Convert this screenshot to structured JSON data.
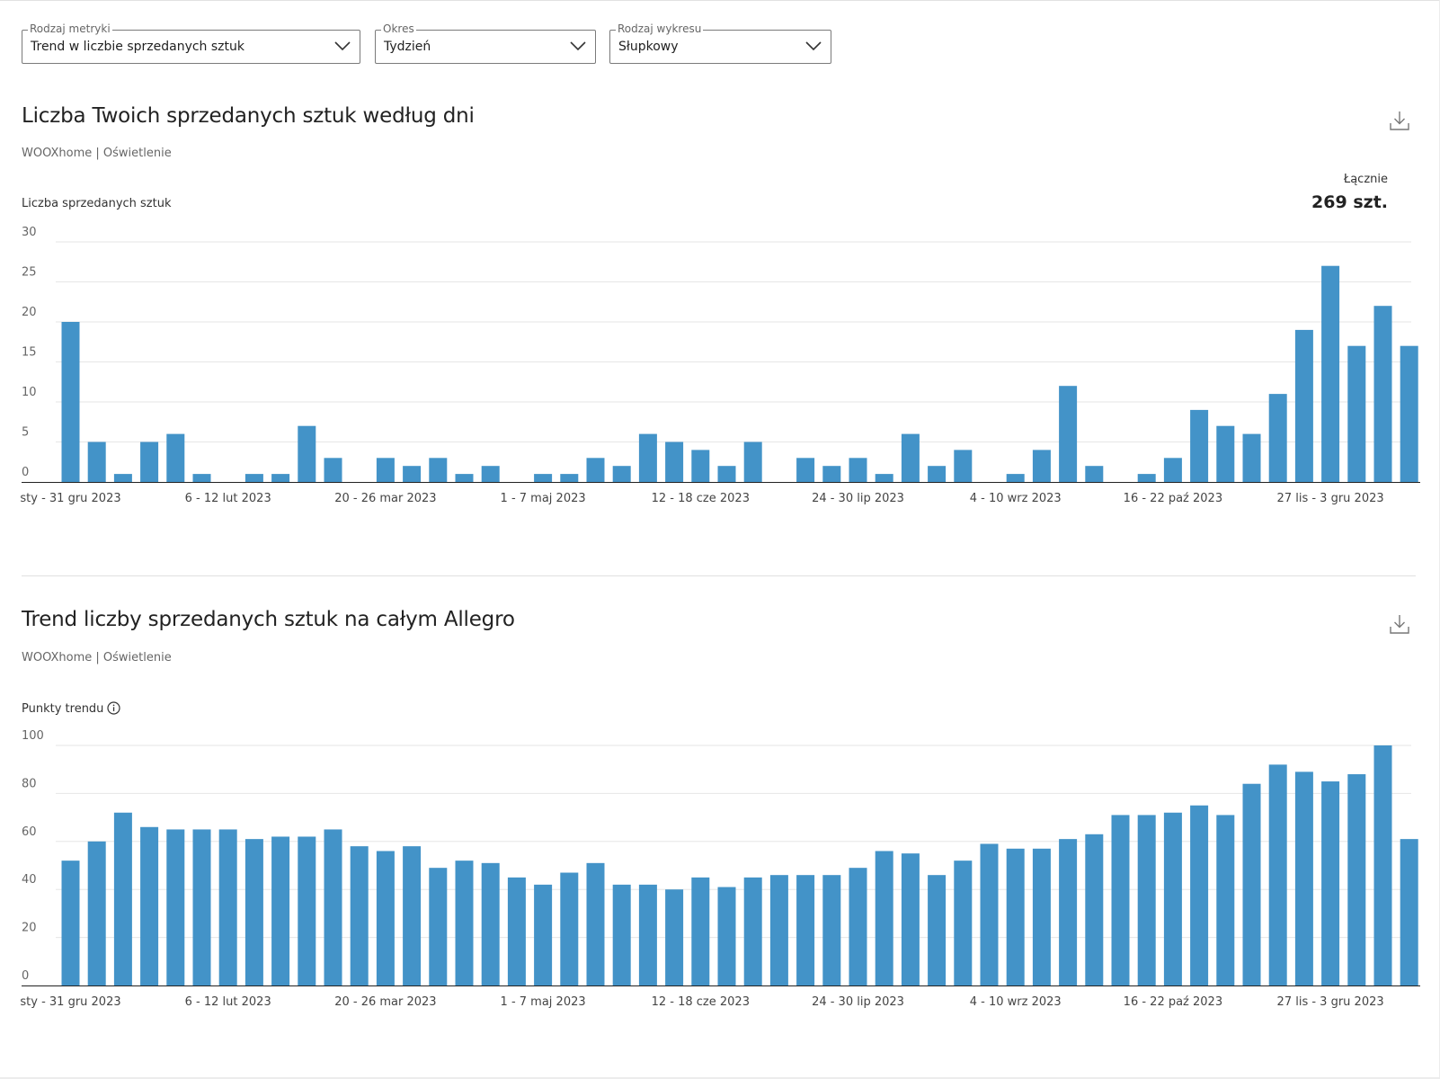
{
  "filters": [
    {
      "label": "Rodzaj metryki",
      "value": "Trend w liczbie sprzedanych sztuk"
    },
    {
      "label": "Okres",
      "value": "Tydzień"
    },
    {
      "label": "Rodzaj wykresu",
      "value": "Słupkowy"
    }
  ],
  "colors": {
    "bar": "#4393c8",
    "grid": "#e6e6e6",
    "axis": "#222222",
    "tick": "#666666"
  },
  "chart1": {
    "title": "Liczba Twoich sprzedanych sztuk według dni",
    "subtitle": "WOOXhome | Oświetlenie",
    "ylabel": "Liczba sprzedanych sztuk",
    "total_label": "Łącznie",
    "total_value": "269 szt."
  },
  "chart2": {
    "title": "Trend liczby sprzedanych sztuk na całym Allegro",
    "subtitle": "WOOXhome | Oświetlenie",
    "ylabel": "Punkty trendu"
  },
  "chart_data": [
    {
      "type": "bar",
      "title": "Liczba Twoich sprzedanych sztuk według dni",
      "subtitle": "WOOXhome | Oświetlenie",
      "ylabel": "Liczba sprzedanych sztuk",
      "xlabel": "",
      "ylim": [
        0,
        30
      ],
      "yticks": [
        0,
        5,
        10,
        15,
        20,
        25,
        30
      ],
      "grid": true,
      "xtick_labels": [
        "sty - 31 gru 2023",
        "6 - 12 lut 2023",
        "20 - 26 mar 2023",
        "1 - 7 maj 2023",
        "12 - 18 cze 2023",
        "24 - 30 lip 2023",
        "4 - 10 wrz 2023",
        "16 - 22 paź 2023",
        "27 lis - 3 gru 2023"
      ],
      "xtick_positions": [
        0,
        6,
        12,
        18,
        24,
        30,
        36,
        42,
        48
      ],
      "values": [
        20,
        5,
        1,
        5,
        6,
        1,
        0,
        1,
        1,
        7,
        3,
        0,
        3,
        2,
        3,
        1,
        2,
        0,
        1,
        1,
        3,
        2,
        6,
        5,
        4,
        2,
        5,
        0,
        3,
        2,
        3,
        1,
        6,
        2,
        4,
        0,
        1,
        4,
        12,
        2,
        0,
        1,
        3,
        9,
        7,
        6,
        11,
        19,
        27,
        17,
        22,
        17
      ]
    },
    {
      "type": "bar",
      "title": "Trend liczby sprzedanych sztuk na całym Allegro",
      "subtitle": "WOOXhome | Oświetlenie",
      "ylabel": "Punkty trendu",
      "xlabel": "",
      "ylim": [
        0,
        100
      ],
      "yticks": [
        0,
        20,
        40,
        60,
        80,
        100
      ],
      "grid": true,
      "xtick_labels": [
        "sty - 31 gru 2023",
        "6 - 12 lut 2023",
        "20 - 26 mar 2023",
        "1 - 7 maj 2023",
        "12 - 18 cze 2023",
        "24 - 30 lip 2023",
        "4 - 10 wrz 2023",
        "16 - 22 paź 2023",
        "27 lis - 3 gru 2023"
      ],
      "xtick_positions": [
        0,
        6,
        12,
        18,
        24,
        30,
        36,
        42,
        48
      ],
      "values": [
        52,
        60,
        72,
        66,
        65,
        65,
        65,
        61,
        62,
        62,
        65,
        58,
        56,
        58,
        49,
        52,
        51,
        45,
        42,
        47,
        51,
        42,
        42,
        40,
        45,
        41,
        45,
        46,
        46,
        46,
        49,
        56,
        55,
        46,
        52,
        59,
        57,
        57,
        61,
        63,
        71,
        71,
        72,
        75,
        71,
        84,
        92,
        89,
        85,
        88,
        100,
        61
      ]
    }
  ]
}
